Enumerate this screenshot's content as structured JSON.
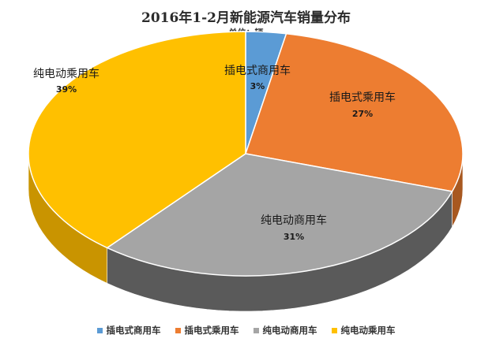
{
  "chart_data": {
    "type": "pie",
    "title": "2016年1-2月新能源汽车销量分布",
    "subtitle": "单位：辆",
    "categories": [
      "插电式商用车",
      "插电式乘用车",
      "纯电动商用车",
      "纯电动乘用车"
    ],
    "values": [
      3,
      27,
      31,
      39
    ],
    "percent_labels": [
      "3%",
      "27%",
      "31%",
      "39%"
    ],
    "colors": [
      "#5b9bd5",
      "#ed7d31",
      "#a5a5a5",
      "#ffc000"
    ],
    "side_colors": [
      "#3f72a0",
      "#a85820",
      "#5a5a5a",
      "#c99400"
    ],
    "legend_placement": "bottom",
    "style": "3d"
  }
}
